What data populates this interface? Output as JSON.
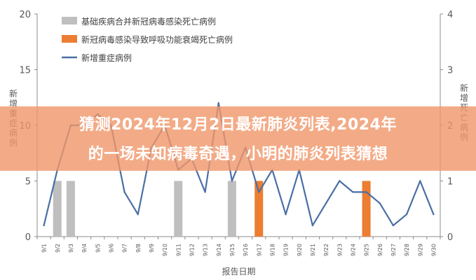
{
  "banner": {
    "line1": "猜测2024年12月2日最新肺炎列表,2024年",
    "line2": "的一场未知病毒奇遇，小明的肺炎列表猜想"
  },
  "chart_data": {
    "type": "bar",
    "xlabel": "报告日期",
    "ylabel_left": "新增重症病例",
    "ylabel_right": "新增死亡病例",
    "ylim_left": [
      0,
      20
    ],
    "ylim_right": [
      0,
      4
    ],
    "yticks_left": [
      "0",
      "5",
      "10",
      "15",
      "20"
    ],
    "yticks_right": [
      "0",
      "1",
      "2",
      "3",
      "4"
    ],
    "categories": [
      "9/1",
      "9/2",
      "9/3",
      "9/4",
      "9/5",
      "9/6",
      "9/7",
      "9/8",
      "9/9",
      "9/10",
      "9/11",
      "9/12",
      "9/13",
      "9/14",
      "9/15",
      "9/16",
      "9/17",
      "9/18",
      "9/19",
      "9/20",
      "9/21",
      "9/22",
      "9/23",
      "9/24",
      "9/25",
      "9/26",
      "9/27",
      "9/28",
      "9/29",
      "9/30"
    ],
    "series": [
      {
        "name": "基础疾病合并新冠病毒感染死亡病例",
        "axis": "right",
        "kind": "bar",
        "color": "#bfbfbf",
        "values": [
          0,
          1,
          1,
          0,
          0,
          0,
          0,
          0,
          0,
          0,
          1,
          0,
          0,
          0,
          1,
          0,
          0,
          0,
          0,
          0,
          0,
          0,
          0,
          0,
          0,
          0,
          0,
          0,
          0,
          0
        ]
      },
      {
        "name": "新冠病毒感染导致呼吸功能衰竭死亡病例",
        "axis": "right",
        "kind": "bar",
        "color": "#ed7d31",
        "values": [
          0,
          0,
          0,
          0,
          0,
          0,
          0,
          0,
          0,
          0,
          0,
          0,
          0,
          0,
          0,
          0,
          1,
          0,
          0,
          0,
          0,
          0,
          0,
          0,
          1,
          0,
          0,
          0,
          0,
          0
        ]
      },
      {
        "name": "新增重症病例",
        "axis": "left",
        "kind": "line",
        "color": "#4a6fa5",
        "values": [
          1,
          6,
          10,
          10,
          11,
          10,
          4,
          2,
          8,
          10,
          6,
          7,
          4,
          12,
          5,
          8,
          4,
          6,
          2,
          6,
          1,
          3,
          5,
          4,
          4,
          3,
          1,
          2,
          5,
          2
        ]
      }
    ],
    "legend_position": "top-left",
    "grid": false
  }
}
